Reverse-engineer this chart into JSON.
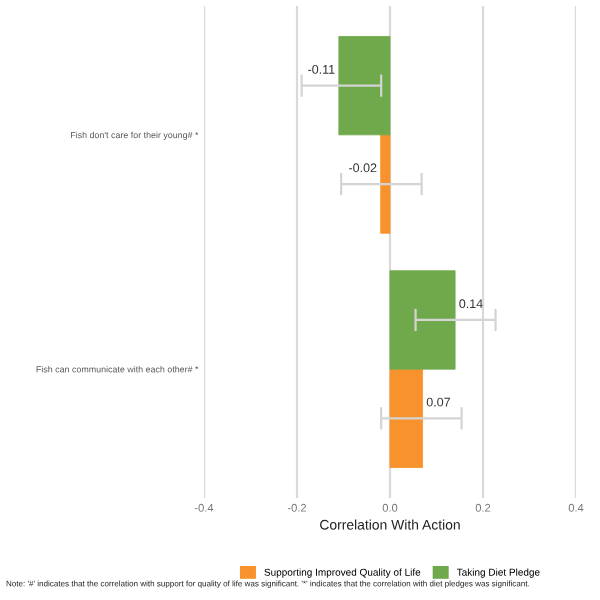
{
  "chart_data": {
    "type": "bar",
    "orientation": "horizontal",
    "xlabel": "Correlation With Action",
    "categories": [
      "Fish don't care for their young# *",
      "Fish can communicate with each other# *"
    ],
    "series": [
      {
        "name": "Supporting Improved Quality of Life",
        "color": "#f7922c",
        "values": [
          -0.02,
          0.07
        ],
        "errors": [
          [
            -0.105,
            0.068
          ],
          [
            -0.019,
            0.154
          ]
        ]
      },
      {
        "name": "Taking Diet Pledge",
        "color": "#70a84c",
        "values": [
          -0.11,
          0.14
        ],
        "errors": [
          [
            -0.19,
            -0.019
          ],
          [
            0.055,
            0.227
          ]
        ]
      }
    ],
    "xlim": [
      -0.4,
      0.4
    ],
    "xticks": [
      {
        "value": -0.4,
        "label": "-0.4"
      },
      {
        "value": -0.2,
        "label": "-0.2"
      },
      {
        "value": 0,
        "label": "0.0"
      },
      {
        "value": 0.2,
        "label": "0.2"
      },
      {
        "value": 0.4,
        "label": "0.4"
      }
    ],
    "grid": "x",
    "legend": "bottom",
    "data_labels": true,
    "annotations": [
      "Note: '#' indicates that the correlation with support for quality of life was significant. '*' indicates that the correlation with diet pledges was significant."
    ]
  }
}
